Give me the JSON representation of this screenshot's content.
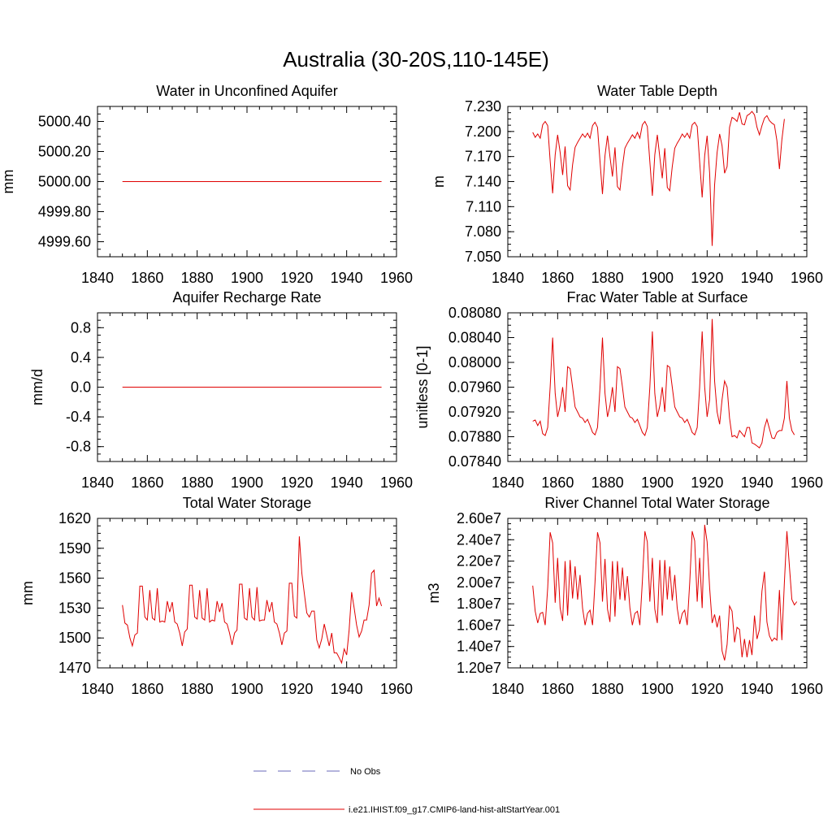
{
  "figure": {
    "title": "Australia (30-20S,110-145E)"
  },
  "legend": {
    "entries": [
      {
        "label": "No Obs",
        "color": "#6a6ab8",
        "dash": true
      },
      {
        "label": "i.e21.IHIST.f09_g17.CMIP6-land-hist-altStartYear.001",
        "color": "#e00000",
        "dash": false
      }
    ]
  },
  "colors": {
    "series": "#e00000",
    "axis": "#000000"
  },
  "chart_data": [
    {
      "type": "line",
      "title": "Water in Unconfined Aquifer",
      "xlabel": "",
      "ylabel": "mm",
      "xlim": [
        1840,
        1960
      ],
      "ylim": [
        4999.5,
        5000.5
      ],
      "xticks": [
        1840,
        1860,
        1880,
        1900,
        1920,
        1940,
        1960
      ],
      "xtick_labels": [
        "1840",
        "1860",
        "1880",
        "1900",
        "1920",
        "1940",
        "1960"
      ],
      "yticks": [
        4999.6,
        4999.8,
        5000.0,
        5000.2,
        5000.4
      ],
      "ytick_labels": [
        "4999.60",
        "4999.80",
        "5000.00",
        "5000.20",
        "5000.40"
      ],
      "x_start": 1850,
      "series": [
        {
          "values": [
            5000.0,
            5000.0
          ],
          "x": [
            1850,
            1954
          ]
        }
      ]
    },
    {
      "type": "line",
      "title": "Water Table Depth",
      "xlabel": "",
      "ylabel": "m",
      "xlim": [
        1840,
        1960
      ],
      "ylim": [
        7.05,
        7.23
      ],
      "xticks": [
        1840,
        1860,
        1880,
        1900,
        1920,
        1940,
        1960
      ],
      "xtick_labels": [
        "1840",
        "1860",
        "1880",
        "1900",
        "1920",
        "1940",
        "1960"
      ],
      "yticks": [
        7.05,
        7.08,
        7.11,
        7.14,
        7.17,
        7.2,
        7.23
      ],
      "ytick_labels": [
        "7.050",
        "7.080",
        "7.110",
        "7.140",
        "7.170",
        "7.200",
        "7.230"
      ],
      "x_start": 1850,
      "series": [
        {
          "values": [
            7.199,
            7.193,
            7.197,
            7.192,
            7.208,
            7.212,
            7.207,
            7.165,
            7.126,
            7.172,
            7.196,
            7.175,
            7.148,
            7.182,
            7.135,
            7.13,
            7.16,
            7.181,
            7.187,
            7.192,
            7.197,
            7.193,
            7.198,
            7.192,
            7.207,
            7.211,
            7.205,
            7.164,
            7.125,
            7.171,
            7.195,
            7.17,
            7.146,
            7.181,
            7.134,
            7.13,
            7.158,
            7.18,
            7.186,
            7.191,
            7.196,
            7.192,
            7.199,
            7.192,
            7.208,
            7.212,
            7.206,
            7.164,
            7.123,
            7.172,
            7.196,
            7.169,
            7.144,
            7.18,
            7.133,
            7.129,
            7.158,
            7.18,
            7.186,
            7.191,
            7.197,
            7.193,
            7.198,
            7.192,
            7.208,
            7.211,
            7.206,
            7.164,
            7.121,
            7.171,
            7.195,
            7.15,
            7.063,
            7.136,
            7.175,
            7.197,
            7.183,
            7.15,
            7.158,
            7.205,
            7.217,
            7.215,
            7.212,
            7.223,
            7.209,
            7.208,
            7.219,
            7.221,
            7.224,
            7.22,
            7.205,
            7.196,
            7.207,
            7.216,
            7.219,
            7.213,
            7.21,
            7.208,
            7.189,
            7.155,
            7.19,
            7.215
          ]
        }
      ]
    },
    {
      "type": "line",
      "title": "Aquifer Recharge Rate",
      "xlabel": "",
      "ylabel": "mm/d",
      "xlim": [
        1840,
        1960
      ],
      "ylim": [
        -1.0,
        1.0
      ],
      "xticks": [
        1840,
        1860,
        1880,
        1900,
        1920,
        1940,
        1960
      ],
      "xtick_labels": [
        "1840",
        "1860",
        "1880",
        "1900",
        "1920",
        "1940",
        "1960"
      ],
      "yticks": [
        -0.8,
        -0.4,
        0.0,
        0.4,
        0.8
      ],
      "ytick_labels": [
        "-0.8",
        "-0.4",
        "0.0",
        "0.4",
        "0.8"
      ],
      "x_start": 1850,
      "series": [
        {
          "values": [
            0.0,
            0.0
          ],
          "x": [
            1850,
            1954
          ]
        }
      ]
    },
    {
      "type": "line",
      "title": "Frac Water Table at Surface",
      "xlabel": "",
      "ylabel": "unitless [0-1]",
      "xlim": [
        1840,
        1960
      ],
      "ylim": [
        0.0784,
        0.0808
      ],
      "xticks": [
        1840,
        1860,
        1880,
        1900,
        1920,
        1940,
        1960
      ],
      "xtick_labels": [
        "1840",
        "1860",
        "1880",
        "1900",
        "1920",
        "1940",
        "1960"
      ],
      "yticks": [
        0.0784,
        0.0788,
        0.0792,
        0.0796,
        0.08,
        0.0804,
        0.0808
      ],
      "ytick_labels": [
        "0.07840",
        "0.07880",
        "0.07920",
        "0.07960",
        "0.08000",
        "0.08040",
        "0.08080"
      ],
      "x_start": 1850,
      "series": [
        {
          "values": [
            0.07905,
            0.07907,
            0.07898,
            0.07905,
            0.07885,
            0.07882,
            0.07895,
            0.0796,
            0.0804,
            0.0795,
            0.07912,
            0.0793,
            0.0796,
            0.0792,
            0.07993,
            0.0799,
            0.0796,
            0.07928,
            0.0792,
            0.07912,
            0.0791,
            0.07903,
            0.07908,
            0.07898,
            0.07887,
            0.07883,
            0.07895,
            0.0796,
            0.0804,
            0.0795,
            0.07912,
            0.0793,
            0.0796,
            0.0792,
            0.07993,
            0.0799,
            0.0796,
            0.07928,
            0.0792,
            0.07912,
            0.0791,
            0.07903,
            0.07908,
            0.07898,
            0.07887,
            0.07882,
            0.07895,
            0.0796,
            0.0805,
            0.0795,
            0.07912,
            0.0793,
            0.0796,
            0.0792,
            0.07995,
            0.07992,
            0.0796,
            0.07928,
            0.0792,
            0.07912,
            0.0791,
            0.07903,
            0.07908,
            0.07898,
            0.07887,
            0.07883,
            0.07895,
            0.0796,
            0.0805,
            0.0796,
            0.07912,
            0.0794,
            0.0807,
            0.0797,
            0.0792,
            0.079,
            0.0794,
            0.0797,
            0.0796,
            0.0791,
            0.0788,
            0.07882,
            0.07878,
            0.0789,
            0.07885,
            0.0788,
            0.07895,
            0.07895,
            0.0787,
            0.07868,
            0.07865,
            0.07862,
            0.0787,
            0.07895,
            0.07908,
            0.07893,
            0.07878,
            0.07877,
            0.07887,
            0.0789,
            0.0789,
            0.0791,
            0.0797,
            0.0791,
            0.0789,
            0.07883
          ]
        }
      ]
    },
    {
      "type": "line",
      "title": "Total Water Storage",
      "xlabel": "",
      "ylabel": "mm",
      "xlim": [
        1840,
        1960
      ],
      "ylim": [
        1470,
        1620
      ],
      "xticks": [
        1840,
        1860,
        1880,
        1900,
        1920,
        1940,
        1960
      ],
      "xtick_labels": [
        "1840",
        "1860",
        "1880",
        "1900",
        "1920",
        "1940",
        "1960"
      ],
      "yticks": [
        1470,
        1500,
        1530,
        1560,
        1590,
        1620
      ],
      "ytick_labels": [
        "1470",
        "1500",
        "1530",
        "1560",
        "1590",
        "1620"
      ],
      "x_start": 1850,
      "series": [
        {
          "values": [
            1533,
            1515,
            1513,
            1500,
            1492,
            1503,
            1505,
            1552,
            1552,
            1521,
            1518,
            1548,
            1520,
            1518,
            1550,
            1516,
            1517,
            1516,
            1537,
            1526,
            1536,
            1516,
            1514,
            1505,
            1492,
            1506,
            1509,
            1553,
            1553,
            1521,
            1519,
            1548,
            1520,
            1518,
            1550,
            1516,
            1518,
            1517,
            1537,
            1526,
            1535,
            1516,
            1514,
            1505,
            1493,
            1505,
            1508,
            1554,
            1554,
            1520,
            1518,
            1550,
            1521,
            1518,
            1551,
            1517,
            1518,
            1518,
            1538,
            1526,
            1536,
            1516,
            1514,
            1505,
            1493,
            1505,
            1507,
            1555,
            1555,
            1522,
            1520,
            1602,
            1565,
            1545,
            1525,
            1521,
            1527,
            1527,
            1498,
            1490,
            1499,
            1514,
            1503,
            1492,
            1505,
            1485,
            1485,
            1480,
            1475,
            1489,
            1483,
            1508,
            1546,
            1530,
            1513,
            1501,
            1507,
            1518,
            1518,
            1533,
            1565,
            1568,
            1532,
            1540,
            1532
          ]
        }
      ]
    },
    {
      "type": "line",
      "title": "River Channel Total Water Storage",
      "xlabel": "",
      "ylabel": "m3",
      "xlim": [
        1840,
        1960
      ],
      "ylim": [
        12000000,
        26000000
      ],
      "xticks": [
        1840,
        1860,
        1880,
        1900,
        1920,
        1940,
        1960
      ],
      "xtick_labels": [
        "1840",
        "1860",
        "1880",
        "1900",
        "1920",
        "1940",
        "1960"
      ],
      "yticks": [
        12000000,
        14000000,
        16000000,
        18000000,
        20000000,
        22000000,
        24000000,
        26000000
      ],
      "ytick_labels": [
        "1.20e7",
        "1.40e7",
        "1.60e7",
        "1.80e7",
        "2.00e7",
        "2.20e7",
        "2.40e7",
        "2.60e7"
      ],
      "x_start": 1850,
      "series": [
        {
          "values": [
            19700000,
            17300000,
            16200000,
            17100000,
            17200000,
            16000000,
            19500000,
            24700000,
            23700000,
            18100000,
            22300000,
            17600000,
            16400000,
            22000000,
            16900000,
            22100000,
            18500000,
            21500000,
            18400000,
            20700000,
            17600000,
            16000000,
            17100000,
            17400000,
            16000000,
            20000000,
            24700000,
            23700000,
            18200000,
            22200000,
            17500000,
            16300000,
            22000000,
            16800000,
            22000000,
            18400000,
            21400000,
            18300000,
            20600000,
            17600000,
            16000000,
            17100000,
            17300000,
            16000000,
            20100000,
            24800000,
            23800000,
            18200000,
            22300000,
            17500000,
            16200000,
            22100000,
            16900000,
            22100000,
            18400000,
            21500000,
            18300000,
            20700000,
            17600000,
            16100000,
            17100000,
            17400000,
            16000000,
            20000000,
            24800000,
            23900000,
            18200000,
            22300000,
            17600000,
            25400000,
            23800000,
            19500000,
            16200000,
            17000000,
            15800000,
            16900000,
            13600000,
            12700000,
            14200000,
            17800000,
            17300000,
            14400000,
            15800000,
            15600000,
            13000000,
            14700000,
            13000000,
            14600000,
            13200000,
            16900000,
            14700000,
            15600000,
            19200000,
            21000000,
            16300000,
            15000000,
            14500000,
            14800000,
            14600000,
            19300000,
            14600000,
            20000000,
            24800000,
            21600000,
            18400000,
            17900000,
            18200000
          ]
        }
      ]
    }
  ]
}
